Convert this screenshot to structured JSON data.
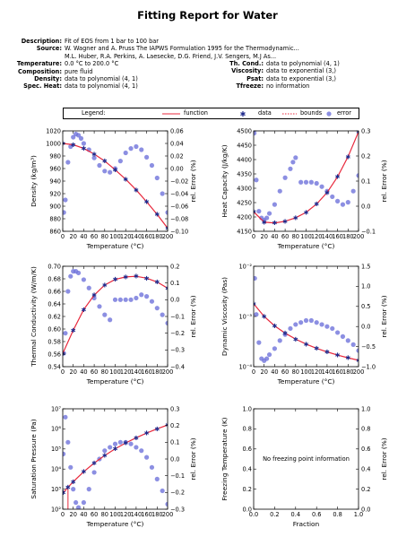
{
  "report": {
    "title": "Fitting Report for Water",
    "info_left": [
      {
        "label": "Description:",
        "value": "Fit of EOS from 1 bar to 100 bar"
      },
      {
        "label": "Source:",
        "value": "W. Wagner and A. Pruss The IAPWS Formulation 1995 for the Thermodynamic..."
      },
      {
        "label": "",
        "value": "M.L. Huber, R.A. Perkins, A. Laesecke, D.G. Friend, J.V. Sengers, M.J As..."
      },
      {
        "label": "Temperature:",
        "value": "0.0 °C to 200.0 °C"
      },
      {
        "label": "Composition:",
        "value": "pure fluid"
      },
      {
        "label": "Density:",
        "value": "data to polynomial (4, 1)"
      },
      {
        "label": "Spec. Heat:",
        "value": "data to polynomial (4, 1)"
      }
    ],
    "info_right": [
      {
        "label": "Th. Cond.:",
        "value": "data to polynomial (4, 1)"
      },
      {
        "label": "Viscosity:",
        "value": "data to exponential (3,)"
      },
      {
        "label": "Psat:",
        "value": "data to exponential (3,)"
      },
      {
        "label": "Tfreeze:",
        "value": "no information"
      }
    ],
    "legend": {
      "title": "Legend:",
      "function": "function",
      "data": "data",
      "bounds": "bounds",
      "error": "error"
    }
  },
  "colors": {
    "function": "#e8283c",
    "data": "#1f2a8c",
    "bounds": "#e8283c",
    "error": "#6f73db"
  },
  "chart_data": [
    {
      "type": "scatter",
      "panel": "density",
      "xlabel": "Temperature (°C)",
      "ylabel": "Density (kg/m³)",
      "y2label": "rel. Error (%)",
      "xlim": [
        0,
        200
      ],
      "ylim": [
        860,
        1020
      ],
      "y2lim": [
        -0.1,
        0.06
      ],
      "xticks": [
        "0",
        "20",
        "40",
        "60",
        "80",
        "100",
        "120",
        "140",
        "160",
        "180",
        "200"
      ],
      "yticks": [
        "860",
        "880",
        "900",
        "920",
        "940",
        "960",
        "980",
        "1000",
        "1020"
      ],
      "y2ticks": [
        "−0.10",
        "−0.08",
        "−0.06",
        "−0.04",
        "−0.02",
        "0.00",
        "0.02",
        "0.04",
        "0.06"
      ],
      "function_points": [
        [
          0,
          1000
        ],
        [
          20,
          998
        ],
        [
          40,
          992
        ],
        [
          60,
          983
        ],
        [
          80,
          972
        ],
        [
          100,
          958
        ],
        [
          120,
          943
        ],
        [
          140,
          926
        ],
        [
          160,
          907
        ],
        [
          180,
          887
        ],
        [
          200,
          865
        ]
      ],
      "error_points": [
        [
          2,
          -0.07
        ],
        [
          5,
          -0.05
        ],
        [
          10,
          0.01
        ],
        [
          15,
          0.035
        ],
        [
          20,
          0.05
        ],
        [
          25,
          0.055
        ],
        [
          30,
          0.053
        ],
        [
          35,
          0.048
        ],
        [
          40,
          0.04
        ],
        [
          50,
          0.03
        ],
        [
          60,
          0.017
        ],
        [
          70,
          0.005
        ],
        [
          80,
          -0.004
        ],
        [
          90,
          -0.006
        ],
        [
          100,
          0.0
        ],
        [
          110,
          0.012
        ],
        [
          120,
          0.025
        ],
        [
          130,
          0.032
        ],
        [
          140,
          0.035
        ],
        [
          150,
          0.03
        ],
        [
          160,
          0.018
        ],
        [
          170,
          0.005
        ],
        [
          180,
          -0.015
        ],
        [
          190,
          -0.04
        ],
        [
          200,
          -0.07
        ]
      ]
    },
    {
      "type": "scatter",
      "panel": "heat_capacity",
      "xlabel": "Temperature (°C)",
      "ylabel": "Heat Capacity (J/kg/K)",
      "y2label": "rel. Error (%)",
      "xlim": [
        0,
        200
      ],
      "ylim": [
        4150,
        4500
      ],
      "y2lim": [
        -0.15,
        0.3
      ],
      "xticks": [
        "0",
        "20",
        "40",
        "60",
        "80",
        "100",
        "120",
        "140",
        "160",
        "180",
        "200"
      ],
      "yticks": [
        "4150",
        "4200",
        "4250",
        "4300",
        "4350",
        "4400",
        "4450",
        "4500"
      ],
      "y2ticks": [
        "−0.1",
        "0.0",
        "0.1",
        "0.2",
        "0.3"
      ],
      "function_points": [
        [
          0,
          4218
        ],
        [
          20,
          4182
        ],
        [
          40,
          4179
        ],
        [
          60,
          4185
        ],
        [
          80,
          4197
        ],
        [
          100,
          4216
        ],
        [
          120,
          4245
        ],
        [
          140,
          4285
        ],
        [
          160,
          4340
        ],
        [
          180,
          4410
        ],
        [
          200,
          4497
        ]
      ],
      "error_points": [
        [
          1,
          0.29
        ],
        [
          5,
          0.08
        ],
        [
          10,
          -0.06
        ],
        [
          15,
          -0.09
        ],
        [
          20,
          -0.1
        ],
        [
          25,
          -0.09
        ],
        [
          30,
          -0.07
        ],
        [
          40,
          -0.03
        ],
        [
          50,
          0.03
        ],
        [
          60,
          0.09
        ],
        [
          70,
          0.13
        ],
        [
          75,
          0.16
        ],
        [
          80,
          0.18
        ],
        [
          90,
          0.07
        ],
        [
          100,
          0.07
        ],
        [
          110,
          0.07
        ],
        [
          120,
          0.065
        ],
        [
          130,
          0.05
        ],
        [
          140,
          0.03
        ],
        [
          150,
          0.005
        ],
        [
          160,
          -0.015
        ],
        [
          170,
          -0.03
        ],
        [
          180,
          -0.02
        ],
        [
          190,
          0.03
        ],
        [
          200,
          0.1
        ]
      ]
    },
    {
      "type": "scatter",
      "panel": "thermal_conductivity",
      "xlabel": "Temperature (°C)",
      "ylabel": "Thermal Conductivity (W/m/K)",
      "y2label": "rel. Error (%)",
      "xlim": [
        0,
        200
      ],
      "ylim": [
        0.54,
        0.7
      ],
      "y2lim": [
        -0.4,
        0.2
      ],
      "xticks": [
        "0",
        "20",
        "40",
        "60",
        "80",
        "100",
        "120",
        "140",
        "160",
        "180",
        "200"
      ],
      "yticks": [
        "0.54",
        "0.56",
        "0.58",
        "0.60",
        "0.62",
        "0.64",
        "0.66",
        "0.68",
        "0.70"
      ],
      "y2ticks": [
        "−0.4",
        "−0.3",
        "−0.2",
        "−0.1",
        "0.0",
        "0.1",
        "0.2"
      ],
      "function_points": [
        [
          0,
          0.561
        ],
        [
          20,
          0.598
        ],
        [
          40,
          0.631
        ],
        [
          60,
          0.654
        ],
        [
          80,
          0.67
        ],
        [
          100,
          0.679
        ],
        [
          120,
          0.683
        ],
        [
          140,
          0.684
        ],
        [
          160,
          0.681
        ],
        [
          180,
          0.675
        ],
        [
          200,
          0.665
        ]
      ],
      "error_points": [
        [
          2,
          -0.32
        ],
        [
          5,
          -0.2
        ],
        [
          10,
          0.05
        ],
        [
          15,
          0.14
        ],
        [
          20,
          0.17
        ],
        [
          25,
          0.17
        ],
        [
          30,
          0.16
        ],
        [
          40,
          0.12
        ],
        [
          50,
          0.07
        ],
        [
          60,
          0.01
        ],
        [
          70,
          -0.04
        ],
        [
          80,
          -0.09
        ],
        [
          90,
          -0.12
        ],
        [
          100,
          0.0
        ],
        [
          110,
          0.0
        ],
        [
          120,
          0.0
        ],
        [
          130,
          0.0
        ],
        [
          140,
          0.01
        ],
        [
          150,
          0.03
        ],
        [
          160,
          0.02
        ],
        [
          170,
          -0.01
        ],
        [
          180,
          -0.05
        ],
        [
          190,
          -0.09
        ],
        [
          200,
          -0.14
        ]
      ]
    },
    {
      "type": "scatter",
      "panel": "viscosity",
      "xlabel": "Temperature (°C)",
      "ylabel": "Dynamic Viscosity (Pas)",
      "y2label": "rel. Error (%)",
      "xlim": [
        0,
        200
      ],
      "ylim": [
        0.0001,
        0.01
      ],
      "y2lim": [
        -1.0,
        1.5
      ],
      "yscale": "log",
      "xticks": [
        "0",
        "20",
        "40",
        "60",
        "80",
        "100",
        "120",
        "140",
        "160",
        "180",
        "200"
      ],
      "yticks": [
        "10⁻⁴",
        "10⁻³",
        "10⁻²"
      ],
      "y2ticks": [
        "−1.0",
        "−0.5",
        "0.0",
        "0.5",
        "1.0",
        "1.5"
      ],
      "function_points": [
        [
          0,
          0.00179
        ],
        [
          20,
          0.001
        ],
        [
          40,
          0.00065
        ],
        [
          60,
          0.000466
        ],
        [
          80,
          0.000354
        ],
        [
          100,
          0.000282
        ],
        [
          120,
          0.000232
        ],
        [
          140,
          0.000197
        ],
        [
          160,
          0.00017
        ],
        [
          180,
          0.00015
        ],
        [
          200,
          0.000134
        ]
      ],
      "error_points": [
        [
          2,
          1.2
        ],
        [
          5,
          0.3
        ],
        [
          10,
          -0.4
        ],
        [
          15,
          -0.8
        ],
        [
          20,
          -0.85
        ],
        [
          25,
          -0.8
        ],
        [
          30,
          -0.7
        ],
        [
          40,
          -0.55
        ],
        [
          50,
          -0.35
        ],
        [
          60,
          -0.2
        ],
        [
          70,
          -0.05
        ],
        [
          80,
          0.05
        ],
        [
          90,
          0.1
        ],
        [
          100,
          0.15
        ],
        [
          110,
          0.15
        ],
        [
          120,
          0.1
        ],
        [
          130,
          0.05
        ],
        [
          140,
          0.0
        ],
        [
          150,
          -0.05
        ],
        [
          160,
          -0.15
        ],
        [
          170,
          -0.25
        ],
        [
          180,
          -0.35
        ],
        [
          190,
          -0.45
        ],
        [
          200,
          -0.6
        ]
      ]
    },
    {
      "type": "scatter",
      "panel": "saturation_pressure",
      "xlabel": "Temperature (°C)",
      "ylabel": "Saturation Pressure (Pa)",
      "y2label": "rel. Error (%)",
      "xlim": [
        0,
        200
      ],
      "ylim": [
        100,
        10000000
      ],
      "y2lim": [
        -0.3,
        0.3
      ],
      "yscale": "log",
      "xticks": [
        "0",
        "20",
        "40",
        "60",
        "80",
        "100",
        "120",
        "140",
        "160",
        "180",
        "200"
      ],
      "yticks": [
        "10²",
        "10³",
        "10⁴",
        "10⁵",
        "10⁶",
        "10⁷"
      ],
      "y2ticks": [
        "−0.3",
        "−0.2",
        "−0.1",
        "0.0",
        "0.1",
        "0.2",
        "0.3"
      ],
      "function_points": [
        [
          1,
          657
        ],
        [
          10,
          1228
        ],
        [
          20,
          2339
        ],
        [
          40,
          7384
        ],
        [
          60,
          19946
        ],
        [
          80,
          47414
        ],
        [
          100,
          101418
        ],
        [
          120,
          198670
        ],
        [
          140,
          361540
        ],
        [
          160,
          618230
        ],
        [
          180,
          1002800
        ],
        [
          200,
          1554900
        ]
      ],
      "bounds_x": [
        10,
        10
      ],
      "bounds_y": [
        100,
        1000
      ],
      "error_points": [
        [
          1,
          0.03
        ],
        [
          5,
          0.25
        ],
        [
          10,
          0.1
        ],
        [
          15,
          -0.05
        ],
        [
          20,
          -0.18
        ],
        [
          25,
          -0.26
        ],
        [
          30,
          -0.29
        ],
        [
          40,
          -0.26
        ],
        [
          50,
          -0.18
        ],
        [
          60,
          -0.08
        ],
        [
          70,
          0.0
        ],
        [
          80,
          0.05
        ],
        [
          90,
          0.07
        ],
        [
          100,
          0.09
        ],
        [
          110,
          0.1
        ],
        [
          120,
          0.1
        ],
        [
          130,
          0.09
        ],
        [
          140,
          0.07
        ],
        [
          150,
          0.05
        ],
        [
          160,
          0.01
        ],
        [
          170,
          -0.05
        ],
        [
          180,
          -0.12
        ],
        [
          190,
          -0.19
        ],
        [
          200,
          -0.27
        ]
      ]
    },
    {
      "type": "scatter",
      "panel": "freezing_temperature",
      "xlabel": "Fraction",
      "ylabel": "Freezing Temperature (K)",
      "y2label": "rel. Error (%)",
      "xlim": [
        0,
        1
      ],
      "ylim": [
        0,
        1
      ],
      "y2lim": [
        0,
        1
      ],
      "xticks": [
        "0.0",
        "0.2",
        "0.4",
        "0.6",
        "0.8",
        "1.0"
      ],
      "yticks": [
        "0.0",
        "0.2",
        "0.4",
        "0.6",
        "0.8",
        "1.0"
      ],
      "y2ticks": [
        "0.0",
        "0.2",
        "0.4",
        "0.6",
        "0.8",
        "1.0"
      ],
      "annotation": "No freezing point information",
      "function_points": [],
      "error_points": []
    }
  ]
}
